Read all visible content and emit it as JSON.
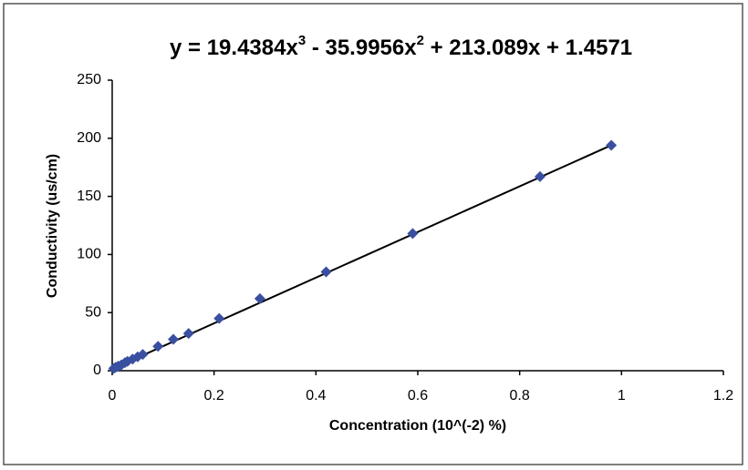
{
  "chart_data": {
    "type": "scatter",
    "equation": [
      "y = 19.4384x",
      "3",
      " - 35.9956x",
      "2",
      " + 213.089x + 1.4571"
    ],
    "x_label": "Concentration (10^(-2) %)",
    "y_label": "Conductivity (us/cm)",
    "x": [
      0.003,
      0.007,
      0.012,
      0.018,
      0.025,
      0.03,
      0.04,
      0.05,
      0.06,
      0.09,
      0.12,
      0.15,
      0.21,
      0.29,
      0.42,
      0.59,
      0.84,
      0.98
    ],
    "values": [
      2,
      3,
      4,
      5,
      7,
      8,
      10,
      12,
      14,
      21,
      27,
      32,
      45,
      62,
      85,
      118,
      167,
      194
    ],
    "color": "#3a4fa0",
    "trendline": {
      "x": [
        0,
        0.98
      ],
      "values": [
        1.5,
        194
      ],
      "color": "#000000"
    },
    "xlim": [
      0,
      1.2
    ],
    "xticks": [
      0,
      0.2,
      0.4,
      0.6,
      0.8,
      1,
      1.2
    ],
    "ylim": [
      0,
      250
    ],
    "yticks": [
      0,
      50,
      100,
      150,
      200,
      250
    ]
  }
}
